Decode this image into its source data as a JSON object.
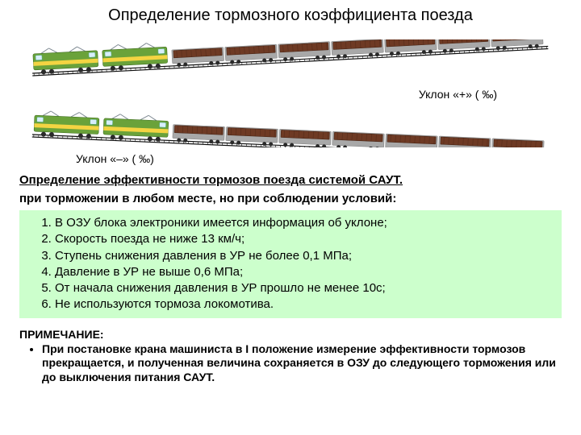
{
  "title": "Определение тормозного коэффициента поезда",
  "train_colors": {
    "loco_body": "#6aa23a",
    "loco_stripe": "#f4d442",
    "loco_roof": "#7f8a93",
    "wagon_body": "#6e3a24",
    "wagon_frame": "#a8a8a8",
    "wheel": "#2a2a2a",
    "rail": "#111111",
    "rail_fill": "#ffffff"
  },
  "slopes": {
    "plus_label": "Уклон «+»  ( ‰)",
    "minus_label": "Уклон «–»  ( ‰)",
    "plus_angle_deg": -3,
    "minus_angle_deg": 2.5
  },
  "subheading": "Определение эффективности тормозов поезда системой САУТ.",
  "condition_intro": "при торможении в любом месте, но при соблюдении условий:",
  "conditions": [
    "В ОЗУ блока электроники имеется информация об уклоне;",
    "Скорость поезда не ниже 13 км/ч;",
    "Ступень снижения давления в УР не более 0,1 МПа;",
    "Давление в УР не выше 0,6 МПа;",
    "От начала снижения давления в УР прошло не менее 10с;",
    "Не используются тормоза локомотива."
  ],
  "note_heading": "ПРИМЕЧАНИЕ:",
  "notes": [
    "При постановке крана машиниста в I положение измерение эффективности тормозов прекращается, и полученная величина сохраняется в ОЗУ до следующего торможения или до выключения питания САУТ."
  ]
}
